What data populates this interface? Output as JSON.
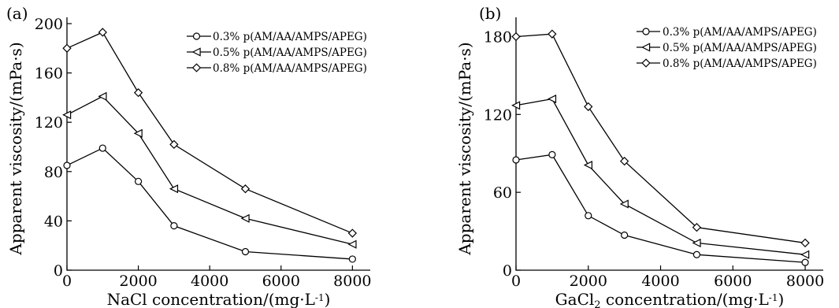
{
  "chart_data": [
    {
      "type": "line",
      "panel_label": "(a)",
      "xlabel": "NaCl concentration/(mg·L",
      "xlabel_sup": "-1",
      "xlabel_tail": ")",
      "ylabel": "Apparent viscosity/(mPa·s)",
      "xlim": [
        0,
        8500
      ],
      "ylim": [
        0,
        200
      ],
      "xticks": [
        0,
        2000,
        4000,
        6000,
        8000
      ],
      "yticks": [
        0,
        40,
        80,
        120,
        160,
        200
      ],
      "x": [
        0,
        1000,
        2000,
        3000,
        5000,
        8000
      ],
      "legend_position": "top-right",
      "series": [
        {
          "name": "0.3% p(AM/AA/AMPS/APEG)",
          "marker": "circle",
          "values": [
            85,
            99,
            72,
            36,
            15,
            9
          ]
        },
        {
          "name": "0.5% p(AM/AA/AMPS/APEG)",
          "marker": "triangle-left",
          "values": [
            126,
            141,
            111,
            66,
            42,
            21
          ]
        },
        {
          "name": "0.8% p(AM/AA/AMPS/APEG)",
          "marker": "diamond",
          "values": [
            180,
            193,
            144,
            102,
            66,
            30
          ]
        }
      ]
    },
    {
      "type": "line",
      "panel_label": "(b)",
      "xlabel": "GaCl",
      "xlabel_sub": "2",
      "xlabel_mid": " concentration/(mg·L",
      "xlabel_sup": "-1",
      "xlabel_tail": ")",
      "ylabel": "Apparent viscosity/(mPa·s)",
      "xlim": [
        0,
        8500
      ],
      "ylim": [
        0,
        190
      ],
      "xticks": [
        0,
        2000,
        4000,
        6000,
        8000
      ],
      "yticks": [
        0,
        60,
        120,
        180
      ],
      "x": [
        0,
        1000,
        2000,
        3000,
        5000,
        8000
      ],
      "legend_position": "top-right",
      "series": [
        {
          "name": "0.3% p(AM/AA/AMPS/APEG)",
          "marker": "circle",
          "values": [
            85,
            89,
            42,
            27,
            12,
            6
          ]
        },
        {
          "name": "0.5% p(AM/AA/AMPS/APEG)",
          "marker": "triangle-left",
          "values": [
            127,
            132,
            81,
            51,
            21,
            12
          ]
        },
        {
          "name": "0.8% p(AM/AA/AMPS/APEG)",
          "marker": "diamond",
          "values": [
            180,
            182,
            126,
            84,
            33,
            21
          ]
        }
      ]
    }
  ]
}
